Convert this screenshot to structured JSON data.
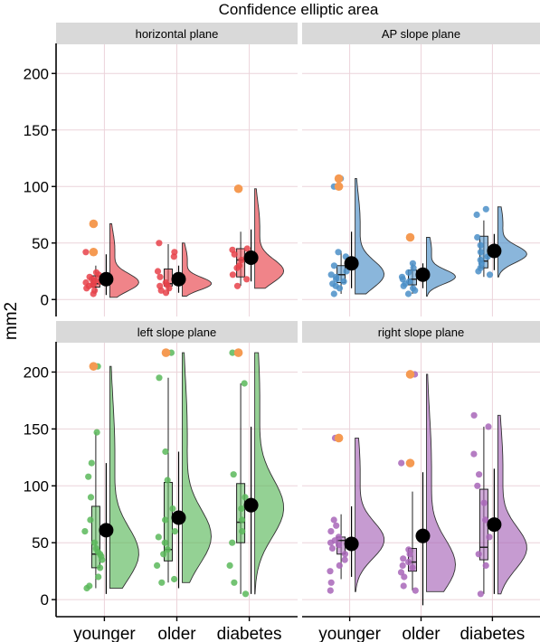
{
  "chart_data": {
    "type": "raincloud",
    "title": "Confidence elliptic area",
    "ylabel": "mm2",
    "xlabel": "",
    "categories": [
      "younger",
      "older",
      "diabetes"
    ],
    "grid": true,
    "legend": "none",
    "panels": [
      {
        "name": "horizontal plane",
        "color": "#e8424a",
        "ylim": [
          -15,
          225
        ],
        "yticks": [
          0,
          50,
          100,
          150,
          200
        ],
        "groups": [
          {
            "category": "younger",
            "points": [
              5,
              8,
              10,
              12,
              13,
              14,
              15,
              16,
              17,
              18,
              20,
              22,
              24,
              42
            ],
            "outliers": [
              67,
              42
            ],
            "box": {
              "q1": 11,
              "median": 14,
              "q3": 21,
              "whisker_low": 5,
              "whisker_high": 30
            },
            "mean": 18,
            "mean_ci": [
              4,
              40
            ],
            "density": {
              "min": 2,
              "max": 67,
              "peak": 15
            }
          },
          {
            "category": "older",
            "points": [
              6,
              8,
              10,
              12,
              13,
              15,
              20,
              25,
              38,
              42,
              50
            ],
            "outliers": [],
            "box": {
              "q1": 12,
              "median": 14,
              "q3": 27,
              "whisker_low": 5,
              "whisker_high": 49
            },
            "mean": 18,
            "mean_ci": [
              6,
              30
            ],
            "density": {
              "min": 3,
              "max": 50,
              "peak": 14
            }
          },
          {
            "category": "diabetes",
            "points": [
              12,
              18,
              22,
              28,
              30,
              35,
              40,
              44,
              45,
              98
            ],
            "outliers": [
              98
            ],
            "box": {
              "q1": 20,
              "median": 35,
              "q3": 45,
              "whisker_low": 12,
              "whisker_high": 60
            },
            "mean": 37,
            "mean_ci": [
              16,
              62
            ],
            "density": {
              "min": 10,
              "max": 98,
              "peak": 25
            }
          }
        ]
      },
      {
        "name": "AP slope plane",
        "color": "#4b8fc8",
        "ylim": [
          -15,
          225
        ],
        "yticks": [
          0,
          50,
          100,
          150,
          200
        ],
        "groups": [
          {
            "category": "younger",
            "points": [
              5,
              10,
              12,
              14,
              16,
              18,
              20,
              22,
              25,
              30,
              38,
              42,
              100,
              107
            ],
            "outliers": [
              107,
              100
            ],
            "box": {
              "q1": 15,
              "median": 22,
              "q3": 30,
              "whisker_low": 5,
              "whisker_high": 43
            },
            "mean": 32,
            "mean_ci": [
              10,
              60
            ],
            "density": {
              "min": 5,
              "max": 107,
              "peak": 22
            }
          },
          {
            "category": "older",
            "points": [
              5,
              8,
              10,
              12,
              14,
              16,
              18,
              20,
              24,
              28,
              32
            ],
            "outliers": [
              55
            ],
            "box": {
              "q1": 13,
              "median": 18,
              "q3": 26,
              "whisker_low": 5,
              "whisker_high": 32
            },
            "mean": 22,
            "mean_ci": [
              10,
              32
            ],
            "density": {
              "min": 3,
              "max": 55,
              "peak": 20
            }
          },
          {
            "category": "diabetes",
            "points": [
              22,
              25,
              28,
              32,
              35,
              38,
              42,
              48,
              55,
              75,
              80
            ],
            "outliers": [],
            "box": {
              "q1": 28,
              "median": 34,
              "q3": 56,
              "whisker_low": 20,
              "whisker_high": 70
            },
            "mean": 43,
            "mean_ci": [
              26,
              58
            ],
            "density": {
              "min": 20,
              "max": 82,
              "peak": 40
            }
          }
        ]
      },
      {
        "name": "left slope plane",
        "color": "#5bb85b",
        "ylim": [
          -15,
          225
        ],
        "yticks": [
          0,
          50,
          100,
          150,
          200
        ],
        "groups": [
          {
            "category": "younger",
            "points": [
              10,
              12,
              20,
              28,
              35,
              38,
              40,
              42,
              45,
              50,
              60,
              70,
              90,
              108,
              120,
              147,
              205
            ],
            "outliers": [
              205
            ],
            "box": {
              "q1": 28,
              "median": 40,
              "q3": 82,
              "whisker_low": 10,
              "whisker_high": 147
            },
            "mean": 61,
            "mean_ci": [
              5,
              120
            ],
            "density": {
              "min": 10,
              "max": 205,
              "peak": 40
            }
          },
          {
            "category": "older",
            "points": [
              15,
              18,
              30,
              40,
              44,
              50,
              55,
              60,
              70,
              80,
              105,
              130,
              195,
              217
            ],
            "outliers": [
              217
            ],
            "box": {
              "q1": 34,
              "median": 44,
              "q3": 103,
              "whisker_low": 15,
              "whisker_high": 195
            },
            "mean": 72,
            "mean_ci": [
              10,
              130
            ],
            "density": {
              "min": 15,
              "max": 217,
              "peak": 55
            }
          },
          {
            "category": "diabetes",
            "points": [
              5,
              15,
              30,
              50,
              60,
              70,
              80,
              90,
              110,
              190,
              217
            ],
            "outliers": [
              217
            ],
            "box": {
              "q1": 50,
              "median": 68,
              "q3": 102,
              "whisker_low": 5,
              "whisker_high": 190
            },
            "mean": 83,
            "mean_ci": [
              5,
              152
            ],
            "density": {
              "min": 5,
              "max": 217,
              "peak": 80
            }
          }
        ]
      },
      {
        "name": "right slope plane",
        "color": "#a866b8",
        "ylim": [
          -15,
          225
        ],
        "yticks": [
          0,
          50,
          100,
          150,
          200
        ],
        "groups": [
          {
            "category": "younger",
            "points": [
              8,
              15,
              25,
              30,
              35,
              40,
              45,
              48,
              50,
              52,
              55,
              60,
              65,
              70,
              142
            ],
            "outliers": [
              142
            ],
            "box": {
              "q1": 40,
              "median": 52,
              "q3": 55,
              "whisker_low": 18,
              "whisker_high": 75
            },
            "mean": 49,
            "mean_ci": [
              20,
              82
            ],
            "density": {
              "min": 7,
              "max": 142,
              "peak": 52
            }
          },
          {
            "category": "older",
            "points": [
              8,
              12,
              20,
              24,
              28,
              30,
              33,
              36,
              40,
              44,
              120,
              198
            ],
            "outliers": [
              198,
              120
            ],
            "box": {
              "q1": 25,
              "median": 33,
              "q3": 45,
              "whisker_low": 8,
              "whisker_high": 95
            },
            "mean": 56,
            "mean_ci": [
              -5,
              112
            ],
            "density": {
              "min": 7,
              "max": 198,
              "peak": 30
            }
          },
          {
            "category": "diabetes",
            "points": [
              5,
              30,
              40,
              55,
              70,
              85,
              100,
              110,
              128,
              152,
              162
            ],
            "outliers": [],
            "box": {
              "q1": 35,
              "median": 46,
              "q3": 97,
              "whisker_low": 5,
              "whisker_high": 152
            },
            "mean": 66,
            "mean_ci": [
              5,
              115
            ],
            "density": {
              "min": 5,
              "max": 162,
              "peak": 45
            }
          }
        ]
      }
    ]
  }
}
